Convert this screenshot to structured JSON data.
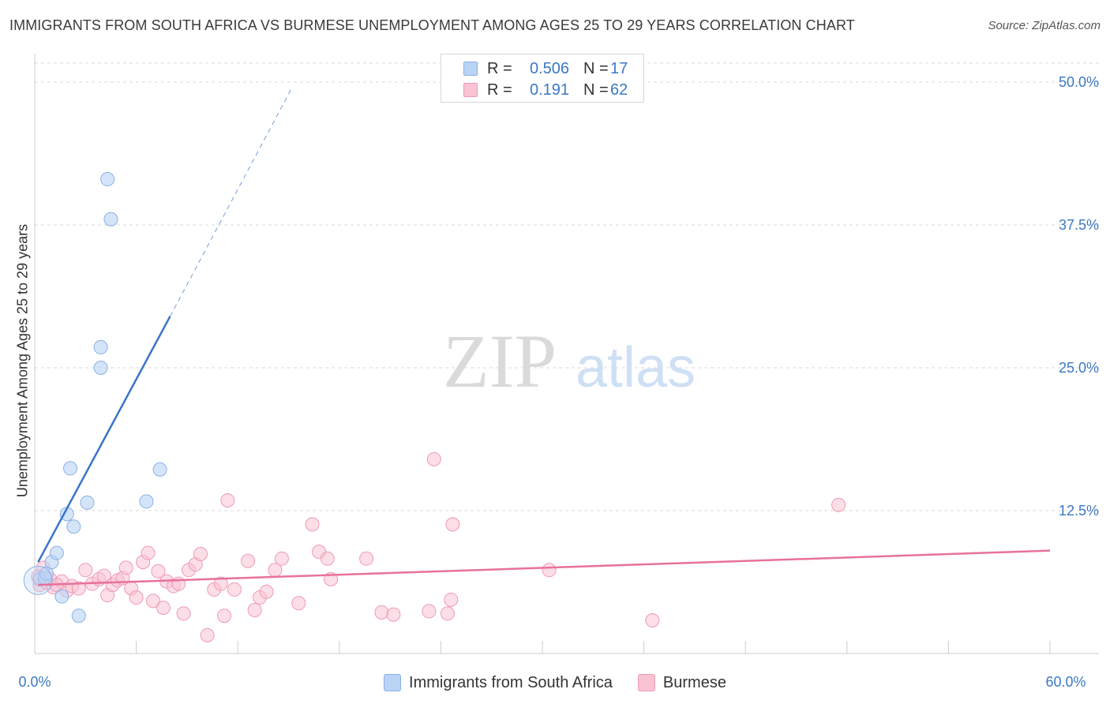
{
  "title": "IMMIGRANTS FROM SOUTH AFRICA VS BURMESE UNEMPLOYMENT AMONG AGES 25 TO 29 YEARS CORRELATION CHART",
  "source": "Source: ZipAtlas.com",
  "watermark": {
    "zip": "ZIP",
    "atlas": "atlas"
  },
  "legend": {
    "series1": {
      "r_label": "R =",
      "r_value": "0.506",
      "n_label": "N =",
      "n_value": "17"
    },
    "series2": {
      "r_label": "R =",
      "r_value": "0.191",
      "n_label": "N =",
      "n_value": "62"
    }
  },
  "colors": {
    "blue_fill": "#b9d3f5",
    "blue_stroke": "#8ab0e6",
    "blue_line": "#3a74c8",
    "pink_fill": "#f9c3d3",
    "pink_stroke": "#ef9ab4",
    "pink_line": "#e8719a",
    "axis_text": "#3b78c4",
    "grid": "#d9d9d9"
  },
  "chart_data": {
    "type": "scatter",
    "title": "IMMIGRANTS FROM SOUTH AFRICA VS BURMESE UNEMPLOYMENT AMONG AGES 25 TO 29 YEARS CORRELATION CHART",
    "xlabel": "",
    "ylabel": "Unemployment Among Ages 25 to 29 years",
    "xlim": [
      0,
      60
    ],
    "ylim": [
      0,
      52
    ],
    "x_tick_labels": [
      "0.0%",
      "60.0%"
    ],
    "y_ticks": [
      12.5,
      25.0,
      37.5,
      50.0
    ],
    "y_tick_labels": [
      "12.5%",
      "25.0%",
      "37.5%",
      "50.0%"
    ],
    "grid": "horizontal dashed",
    "legend_position": "bottom-center",
    "series": [
      {
        "name": "Immigrants from South Africa",
        "R": 0.506,
        "N": 17,
        "trend": {
          "x0": 0.2,
          "y0": 8.0,
          "x1": 8.0,
          "y1": 29.5,
          "dash_to": [
            15.2,
            49.5
          ]
        },
        "points": [
          [
            0.3,
            6.5
          ],
          [
            0.6,
            6.6
          ],
          [
            0.7,
            7.0
          ],
          [
            1.0,
            8.0
          ],
          [
            1.3,
            8.8
          ],
          [
            1.6,
            5.0
          ],
          [
            1.9,
            12.2
          ],
          [
            2.1,
            16.2
          ],
          [
            2.3,
            11.1
          ],
          [
            2.6,
            3.3
          ],
          [
            3.1,
            13.2
          ],
          [
            3.9,
            26.8
          ],
          [
            3.9,
            25.0
          ],
          [
            4.3,
            41.5
          ],
          [
            4.5,
            38.0
          ],
          [
            6.6,
            13.3
          ],
          [
            7.4,
            16.1
          ]
        ]
      },
      {
        "name": "Burmese",
        "R": 0.191,
        "N": 62,
        "trend": {
          "x0": 0.2,
          "y0": 6.0,
          "x1": 60.0,
          "y1": 9.0
        },
        "points": [
          [
            0.3,
            6.0
          ],
          [
            0.5,
            7.5
          ],
          [
            0.7,
            6.2
          ],
          [
            0.9,
            6.5
          ],
          [
            1.1,
            5.8
          ],
          [
            1.6,
            6.3
          ],
          [
            1.9,
            5.5
          ],
          [
            2.2,
            5.9
          ],
          [
            2.6,
            5.7
          ],
          [
            3.0,
            7.3
          ],
          [
            3.4,
            6.1
          ],
          [
            3.8,
            6.5
          ],
          [
            4.1,
            6.8
          ],
          [
            4.3,
            5.1
          ],
          [
            4.6,
            6.0
          ],
          [
            4.9,
            6.4
          ],
          [
            5.2,
            6.6
          ],
          [
            5.4,
            7.5
          ],
          [
            5.7,
            5.7
          ],
          [
            6.0,
            4.9
          ],
          [
            6.4,
            8.0
          ],
          [
            6.7,
            8.8
          ],
          [
            7.0,
            4.6
          ],
          [
            7.3,
            7.2
          ],
          [
            7.6,
            4.0
          ],
          [
            7.8,
            6.3
          ],
          [
            8.2,
            5.9
          ],
          [
            8.5,
            6.1
          ],
          [
            8.8,
            3.5
          ],
          [
            9.1,
            7.3
          ],
          [
            9.5,
            7.8
          ],
          [
            9.8,
            8.7
          ],
          [
            10.2,
            1.6
          ],
          [
            10.6,
            5.6
          ],
          [
            11.0,
            6.1
          ],
          [
            11.2,
            3.3
          ],
          [
            11.4,
            13.4
          ],
          [
            11.8,
            5.6
          ],
          [
            12.6,
            8.1
          ],
          [
            13.0,
            3.8
          ],
          [
            13.3,
            4.9
          ],
          [
            13.7,
            5.4
          ],
          [
            14.2,
            7.3
          ],
          [
            14.6,
            8.3
          ],
          [
            15.6,
            4.4
          ],
          [
            16.4,
            11.3
          ],
          [
            16.8,
            8.9
          ],
          [
            17.3,
            8.3
          ],
          [
            17.5,
            6.5
          ],
          [
            19.6,
            8.3
          ],
          [
            20.5,
            3.6
          ],
          [
            21.2,
            3.4
          ],
          [
            23.3,
            3.7
          ],
          [
            23.6,
            17.0
          ],
          [
            24.4,
            3.5
          ],
          [
            24.6,
            4.7
          ],
          [
            24.7,
            11.3
          ],
          [
            30.4,
            7.3
          ],
          [
            36.5,
            2.9
          ],
          [
            47.5,
            13.0
          ],
          [
            0.2,
            6.7
          ],
          [
            1.3,
            6.0
          ]
        ]
      }
    ]
  }
}
